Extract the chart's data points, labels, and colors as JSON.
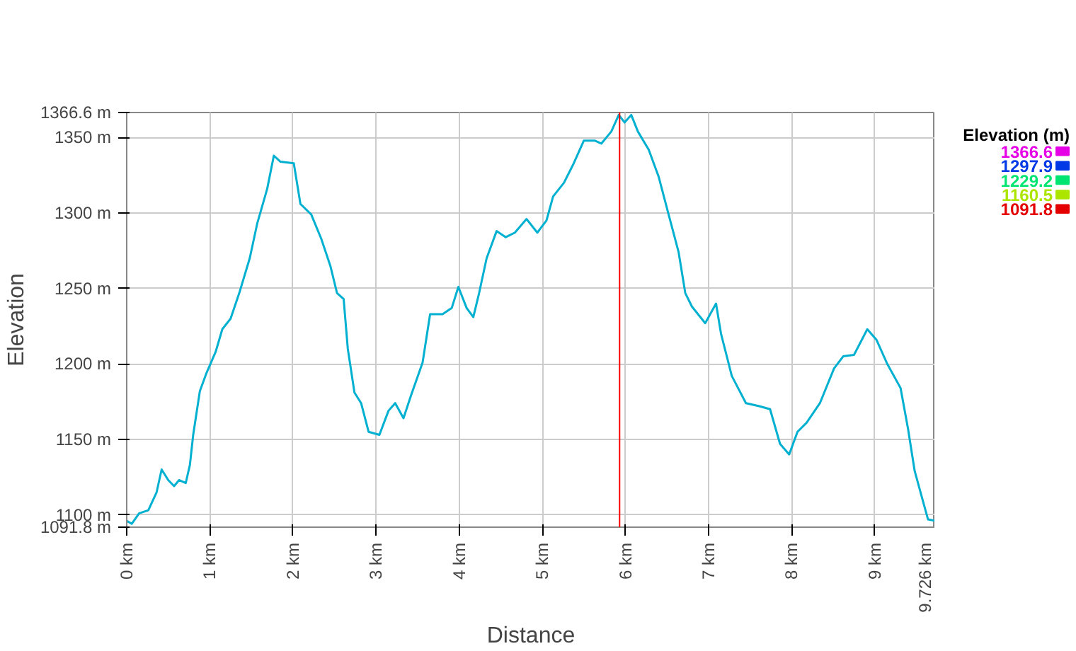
{
  "chart_data": {
    "type": "line",
    "xlabel": "Distance",
    "ylabel": "Elevation",
    "clabel": "Elevation (m)",
    "xlim": [
      0,
      9.726
    ],
    "ylim": [
      1091.8,
      1366.6
    ],
    "xticks": [
      {
        "value": 0,
        "label": "0 km"
      },
      {
        "value": 1,
        "label": "1 km"
      },
      {
        "value": 2,
        "label": "2 km"
      },
      {
        "value": 3,
        "label": "3 km"
      },
      {
        "value": 4,
        "label": "4 km"
      },
      {
        "value": 5,
        "label": "5 km"
      },
      {
        "value": 6,
        "label": "6 km"
      },
      {
        "value": 7,
        "label": "7 km"
      },
      {
        "value": 8,
        "label": "8 km"
      },
      {
        "value": 9,
        "label": "9 km"
      },
      {
        "value": 9.726,
        "label": "9.726 km"
      }
    ],
    "yticks": [
      {
        "value": 1091.8,
        "label": "1091.8 m"
      },
      {
        "value": 1100,
        "label": "1100 m"
      },
      {
        "value": 1150,
        "label": "1150 m"
      },
      {
        "value": 1200,
        "label": "1200 m"
      },
      {
        "value": 1250,
        "label": "1250 m"
      },
      {
        "value": 1300,
        "label": "1300 m"
      },
      {
        "value": 1350,
        "label": "1350 m"
      },
      {
        "value": 1366.6,
        "label": "1366.6 m"
      }
    ],
    "clim": [
      1091.8,
      1366.6
    ],
    "cticks": [
      1366.6,
      1297.9,
      1229.2,
      1160.5,
      1091.8
    ],
    "color": "#00b0d0",
    "grid": true,
    "marker": "none",
    "line_style": "solid",
    "ref_lines": [
      {
        "axis": "x",
        "value": 5.93,
        "label": null,
        "color": "#ff0000"
      }
    ],
    "x": [
      0,
      0.06,
      0.15,
      0.26,
      0.36,
      0.42,
      0.5,
      0.57,
      0.63,
      0.71,
      0.76,
      0.8,
      0.88,
      0.96,
      1.07,
      1.15,
      1.25,
      1.36,
      1.48,
      1.57,
      1.69,
      1.77,
      1.85,
      2.01,
      2.09,
      2.22,
      2.34,
      2.45,
      2.53,
      2.61,
      2.66,
      2.74,
      2.82,
      2.91,
      3.04,
      3.15,
      3.23,
      3.33,
      3.42,
      3.56,
      3.65,
      3.8,
      3.91,
      3.99,
      4.09,
      4.17,
      4.24,
      4.33,
      4.45,
      4.56,
      4.67,
      4.81,
      4.94,
      5.05,
      5.13,
      5.26,
      5.37,
      5.5,
      5.63,
      5.71,
      5.83,
      5.92,
      5.99,
      6.07,
      6.15,
      6.28,
      6.4,
      6.51,
      6.64,
      6.72,
      6.8,
      6.96,
      7.09,
      7.15,
      7.28,
      7.45,
      7.61,
      7.74,
      7.86,
      7.97,
      8.07,
      8.18,
      8.34,
      8.51,
      8.62,
      8.75,
      8.91,
      9.02,
      9.15,
      9.31,
      9.4,
      9.48,
      9.56,
      9.64,
      9.726
    ],
    "values": [
      1096,
      1094,
      1101,
      1103,
      1115,
      1130,
      1123,
      1119,
      1123,
      1121,
      1133,
      1153,
      1182,
      1194,
      1208,
      1223,
      1230,
      1248,
      1270,
      1293,
      1316,
      1338,
      1334,
      1333,
      1306,
      1299,
      1283,
      1265,
      1247,
      1243,
      1210,
      1181,
      1174,
      1155,
      1153,
      1169,
      1174,
      1164,
      1179,
      1201,
      1233,
      1233,
      1237,
      1251,
      1237,
      1231,
      1247,
      1270,
      1288,
      1284,
      1287,
      1296,
      1287,
      1295,
      1311,
      1320,
      1332,
      1348,
      1348,
      1346,
      1354,
      1365,
      1360,
      1365,
      1354,
      1342,
      1324,
      1301,
      1274,
      1247,
      1238,
      1227,
      1240,
      1220,
      1192,
      1174,
      1172,
      1170,
      1147,
      1140,
      1155,
      1161,
      1174,
      1197,
      1205,
      1206,
      1223,
      1216,
      1200,
      1184,
      1157,
      1129,
      1113,
      1097,
      1096
    ]
  }
}
